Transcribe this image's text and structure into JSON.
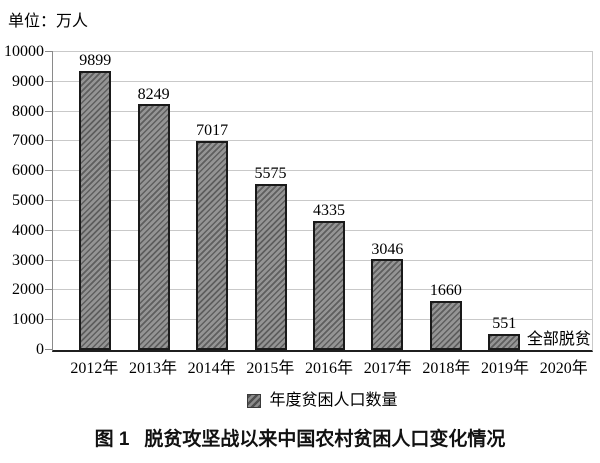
{
  "unit_label": "单位：万人",
  "chart_data": {
    "type": "bar",
    "title": "脱贫攻坚战以来中国农村贫困人口变化情况",
    "figure_label": "图 1",
    "unit": "万人",
    "categories": [
      "2012年",
      "2013年",
      "2014年",
      "2015年",
      "2016年",
      "2017年",
      "2018年",
      "2019年",
      "2020年"
    ],
    "series": [
      {
        "name": "年度贫困人口数量",
        "values": [
          9899,
          8249,
          7017,
          5575,
          4335,
          3046,
          1660,
          551,
          null
        ]
      }
    ],
    "annotations": [
      {
        "category": "2020年",
        "text": "全部脱贫"
      }
    ],
    "ylim": [
      0,
      10000
    ],
    "y_ticks": [
      0,
      1000,
      2000,
      3000,
      4000,
      5000,
      6000,
      7000,
      8000,
      9000,
      10000
    ],
    "grid": true,
    "legend_position": "bottom",
    "bar_hatch": "diagonal-forward-slash",
    "colors": {
      "bar_fill": "#949494",
      "bar_stripe": "#5e5e5e",
      "bar_border": "#1a1a1a",
      "gridline": "#c9c9c9",
      "axis": "#1f1f1f",
      "y_axis": "#8a8a8a",
      "text": "#000000"
    }
  },
  "legend": {
    "label": "年度贫困人口数量"
  },
  "caption": {
    "prefix": "图 1",
    "text": "脱贫攻坚战以来中国农村贫困人口变化情况"
  }
}
